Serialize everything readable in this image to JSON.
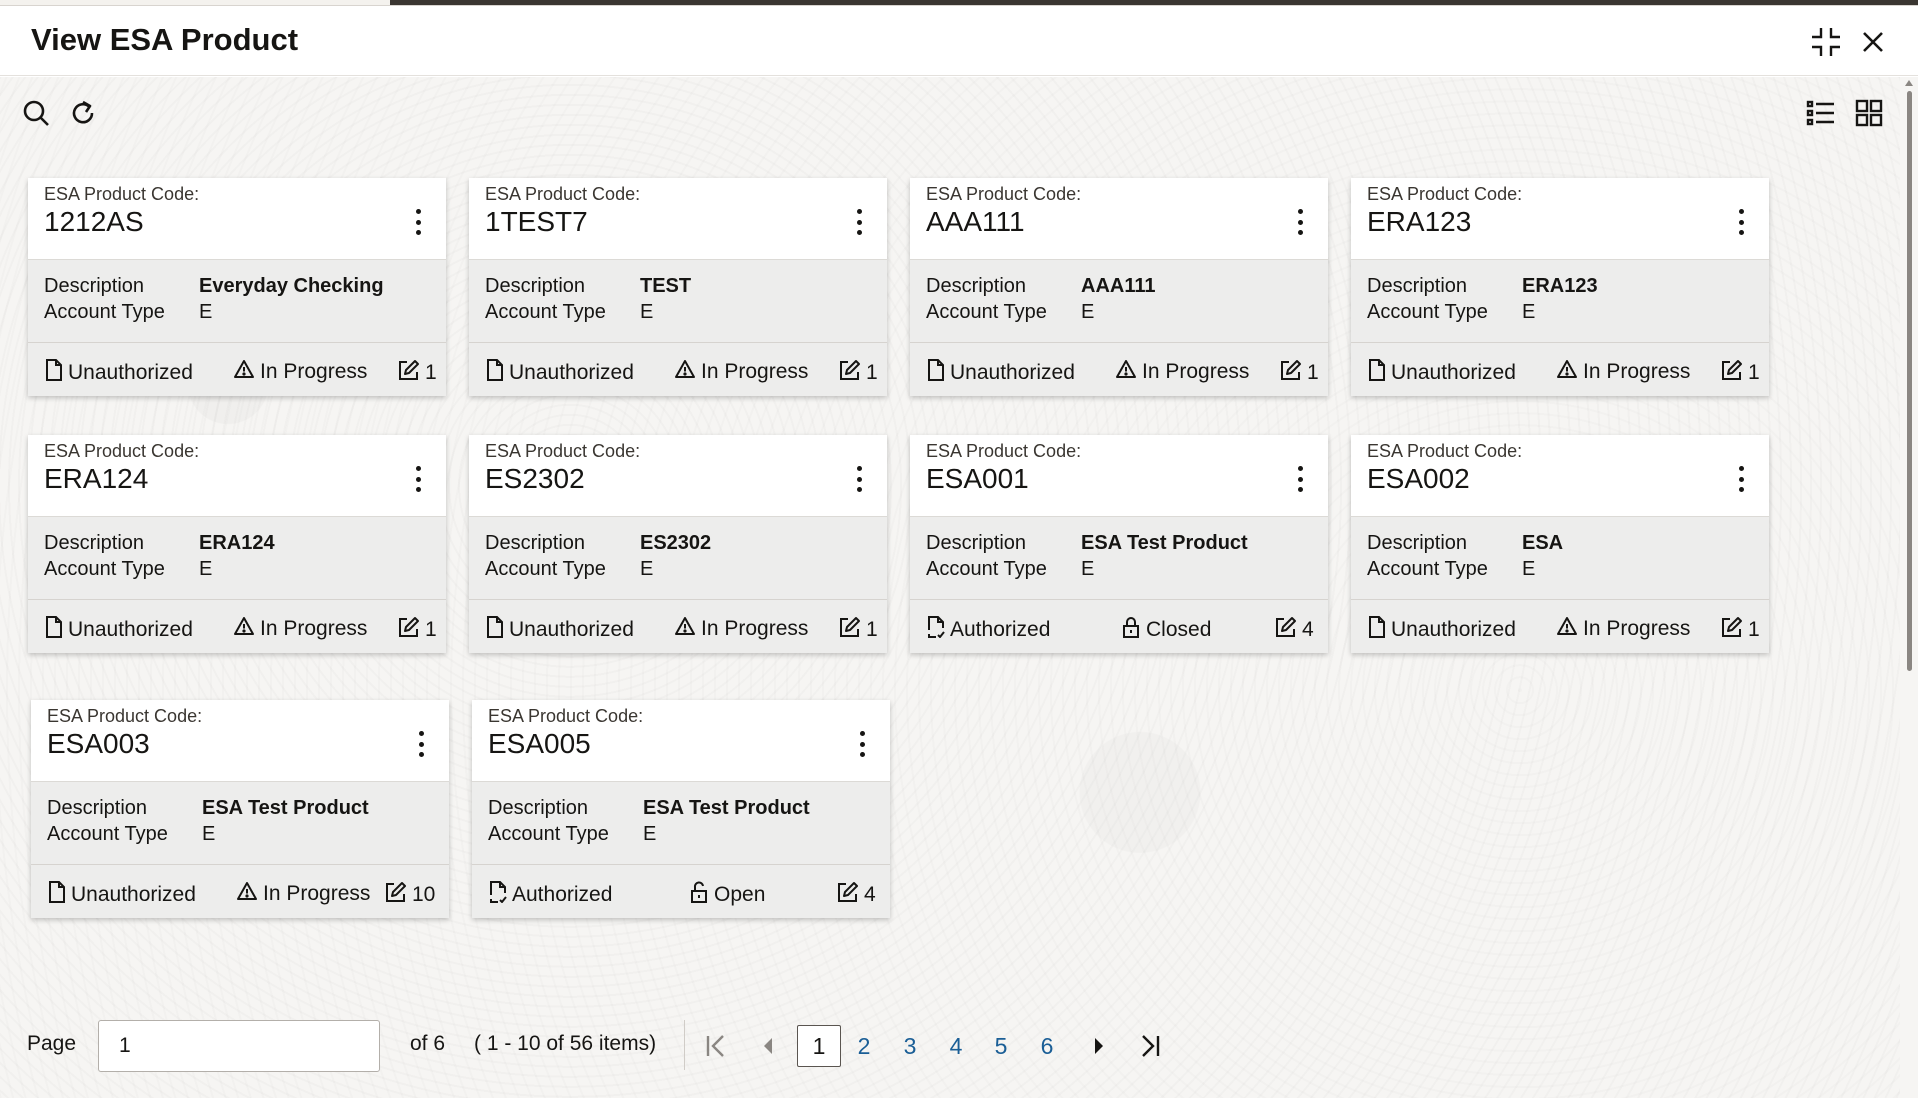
{
  "window": {
    "title": "View ESA Product",
    "compress_icon": "compress-icon",
    "close_icon": "close-icon"
  },
  "toolbar": {
    "search_icon": "search-icon",
    "refresh_icon": "refresh-icon",
    "list_view_icon": "list-view-icon",
    "grid_view_icon": "grid-view-icon"
  },
  "card_labels": {
    "code_label": "ESA Product Code:",
    "description_label": "Description",
    "account_type_label": "Account Type"
  },
  "cards": [
    {
      "code": "1212AS",
      "description": "Everyday Checking",
      "account_type": "E",
      "auth": "Unauthorized",
      "status": "In Progress",
      "edits": "1"
    },
    {
      "code": "1TEST7",
      "description": "TEST",
      "account_type": "E",
      "auth": "Unauthorized",
      "status": "In Progress",
      "edits": "1"
    },
    {
      "code": "AAA111",
      "description": "AAA111",
      "account_type": "E",
      "auth": "Unauthorized",
      "status": "In Progress",
      "edits": "1"
    },
    {
      "code": "ERA123",
      "description": "ERA123",
      "account_type": "E",
      "auth": "Unauthorized",
      "status": "In Progress",
      "edits": "1"
    },
    {
      "code": "ERA124",
      "description": "ERA124",
      "account_type": "E",
      "auth": "Unauthorized",
      "status": "In Progress",
      "edits": "1"
    },
    {
      "code": "ES2302",
      "description": "ES2302",
      "account_type": "E",
      "auth": "Unauthorized",
      "status": "In Progress",
      "edits": "1"
    },
    {
      "code": "ESA001",
      "description": "ESA Test Product",
      "account_type": "E",
      "auth": "Authorized",
      "status": "Closed",
      "edits": "4"
    },
    {
      "code": "ESA002",
      "description": "ESA",
      "account_type": "E",
      "auth": "Unauthorized",
      "status": "In Progress",
      "edits": "1"
    },
    {
      "code": "ESA003",
      "description": "ESA Test Product",
      "account_type": "E",
      "auth": "Unauthorized",
      "status": "In Progress",
      "edits": "10"
    },
    {
      "code": "ESA005",
      "description": "ESA Test Product",
      "account_type": "E",
      "auth": "Authorized",
      "status": "Open",
      "edits": "4"
    }
  ],
  "pagination": {
    "page_label": "Page",
    "page_value": "1",
    "of_text": "of 6",
    "range_text": "( 1 - 10 of 56 items)",
    "pages": [
      "1",
      "2",
      "3",
      "4",
      "5",
      "6"
    ],
    "current_page": "1"
  },
  "colors": {
    "link": "#1a5e96",
    "text": "#161513",
    "card_body": "#ededec"
  }
}
